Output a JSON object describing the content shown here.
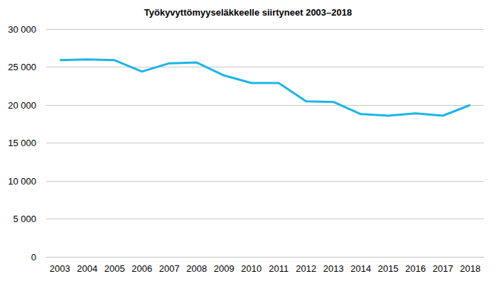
{
  "chart_data": {
    "type": "line",
    "title": "Työkyvyttömyyseläkkeelle siirtyneet 2003–2018",
    "categories": [
      "2003",
      "2004",
      "2005",
      "2006",
      "2007",
      "2008",
      "2009",
      "2010",
      "2011",
      "2012",
      "2013",
      "2014",
      "2015",
      "2016",
      "2017",
      "2018"
    ],
    "values": [
      25900,
      26000,
      25900,
      24400,
      25500,
      25600,
      23900,
      22900,
      22900,
      20500,
      20400,
      18800,
      18600,
      18900,
      18600,
      20000
    ],
    "color": "#1cb4e8",
    "ylim": [
      0,
      30000
    ],
    "yticks": [
      0,
      {
        "value": 5000,
        "label": "5 000"
      },
      {
        "value": 10000,
        "label": "10 000"
      },
      {
        "value": 15000,
        "label": "15 000"
      },
      {
        "value": 20000,
        "label": "20 000"
      },
      {
        "value": 25000,
        "label": "25 000"
      },
      {
        "value": 30000,
        "label": "30 000"
      }
    ],
    "grid": true
  }
}
